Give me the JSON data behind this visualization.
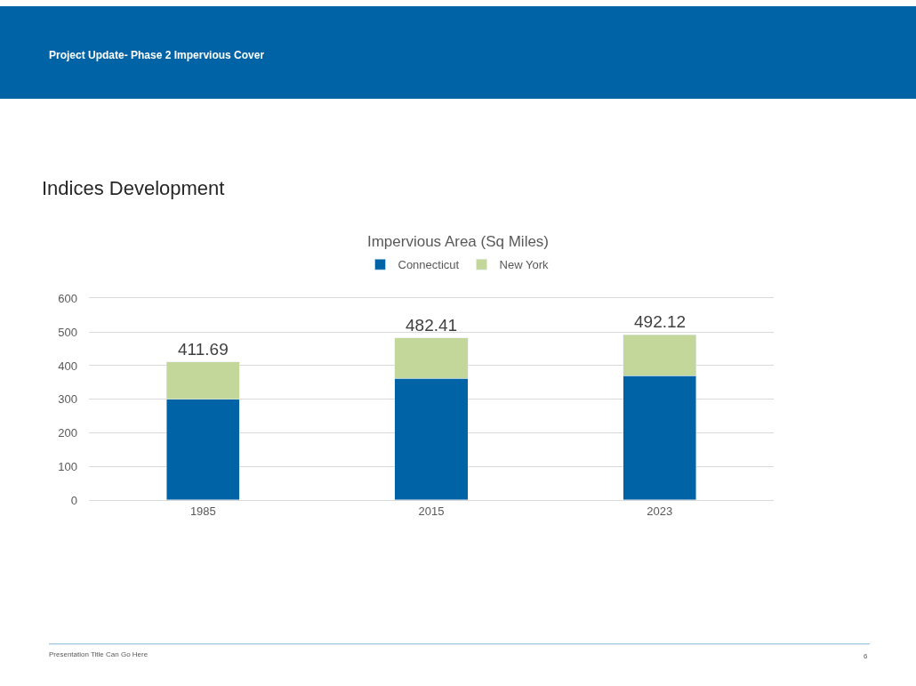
{
  "chart_data": {
    "type": "bar",
    "title": "Impervious Area (Sq Miles)",
    "categories": [
      "1985",
      "2015",
      "2023"
    ],
    "series": [
      {
        "name": "Connecticut",
        "color": "#0063a6",
        "values": [
          300,
          362,
          370
        ]
      },
      {
        "name": "New York",
        "color": "#c4d79b",
        "values": [
          111.69,
          120.41,
          122.12
        ]
      }
    ],
    "stacked": true,
    "totals": [
      "411.69",
      "482.41",
      "492.12"
    ],
    "ylim": [
      0,
      600
    ],
    "yticks": [
      0,
      100,
      200,
      300,
      400,
      500,
      600
    ],
    "grid": "y",
    "legend": "top",
    "annotations": [
      "Project Update- Phase 2 Impervious Cover",
      "Indices Development",
      "Presentation Title Can Go Here",
      "6"
    ]
  }
}
